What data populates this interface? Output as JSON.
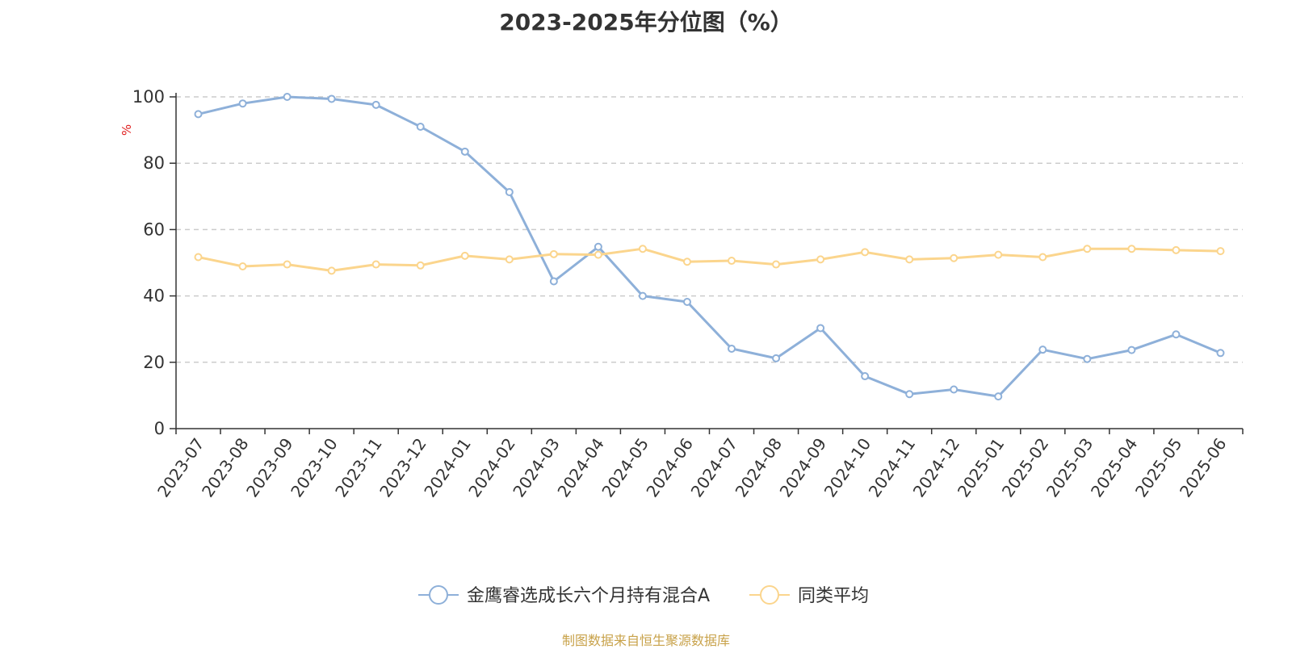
{
  "title": "2023-2025年分位图（%）",
  "source": "制图数据来自恒生聚源数据库",
  "chart_data": {
    "type": "line",
    "title": "2023-2025年分位图（%）",
    "xlabel": "",
    "ylabel": "%",
    "ylim": [
      0,
      100
    ],
    "yticks": [
      0,
      20,
      40,
      60,
      80,
      100
    ],
    "grid": true,
    "legend_position": "bottom",
    "categories": [
      "2023-07",
      "2023-08",
      "2023-09",
      "2023-10",
      "2023-11",
      "2023-12",
      "2024-01",
      "2024-02",
      "2024-03",
      "2024-04",
      "2024-05",
      "2024-06",
      "2024-07",
      "2024-08",
      "2024-09",
      "2024-10",
      "2024-11",
      "2024-12",
      "2025-01",
      "2025-02",
      "2025-03",
      "2025-04",
      "2025-05",
      "2025-06"
    ],
    "series": [
      {
        "name": "金鹰睿选成长六个月持有混合A",
        "color": "#8eb0d9",
        "values": [
          94.8,
          98.0,
          100.0,
          99.4,
          97.6,
          91.0,
          83.5,
          71.3,
          44.4,
          54.8,
          40.0,
          38.2,
          24.1,
          21.2,
          30.3,
          15.8,
          10.4,
          11.8,
          9.7,
          23.8,
          21.0,
          23.7,
          28.4,
          22.8
        ]
      },
      {
        "name": "同类平均",
        "color": "#fbd58d",
        "values": [
          51.7,
          48.9,
          49.5,
          47.6,
          49.5,
          49.2,
          52.1,
          51.0,
          52.6,
          52.4,
          54.2,
          50.3,
          50.6,
          49.5,
          51.0,
          53.2,
          51.0,
          51.4,
          52.4,
          51.7,
          54.2,
          54.2,
          53.8,
          53.5
        ]
      }
    ]
  }
}
